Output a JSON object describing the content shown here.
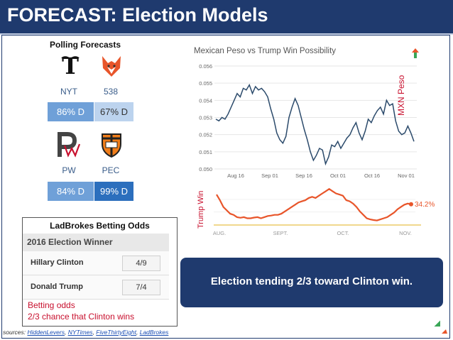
{
  "slide": {
    "title": "FORECAST: Election Models"
  },
  "polling": {
    "title": "Polling Forecasts",
    "items": [
      {
        "name": "NYT",
        "value": "86% D",
        "color": "#6fa0d8",
        "text_color": "#ffffff"
      },
      {
        "name": "538",
        "value": "67% D",
        "color": "#bcd3ee",
        "text_color": "#333333"
      },
      {
        "name": "PW",
        "value": "84% D",
        "color": "#6fa0d8",
        "text_color": "#ffffff"
      },
      {
        "name": "PEC",
        "value": "99% D",
        "color": "#2c6fbd",
        "text_color": "#ffffff"
      }
    ]
  },
  "ladbrokes": {
    "title": "LadBrokes Betting Odds",
    "header": "2016 Election Winner",
    "rows": [
      {
        "name": "Hillary Clinton",
        "odds": "4/9"
      },
      {
        "name": "Donald Trump",
        "odds": "7/4"
      }
    ],
    "note_line1": "Betting odds",
    "note_line2": "2/3 chance that Clinton wins"
  },
  "callout": {
    "text": "Election tending 2/3 toward Clinton win."
  },
  "sources": {
    "prefix": "sources:",
    "links": [
      "HiddenLevers",
      "NYTimes",
      "FiveThirtyEight",
      "LadBrokes"
    ]
  },
  "chart_data": [
    {
      "type": "line",
      "title": "Mexican Peso vs Trump Win Possibility",
      "ylabel": "MXN Peso",
      "ylim": [
        0.05,
        0.056
      ],
      "y_ticks": [
        "0.056",
        "0.055",
        "0.054",
        "0.053",
        "0.052",
        "0.051",
        "0.050"
      ],
      "x_ticks": [
        "Aug 16",
        "Sep 01",
        "Sep 16",
        "Oct 01",
        "Oct 16",
        "Nov 01"
      ],
      "color": "#2b4a6b",
      "series": [
        {
          "values": [
            0.0529,
            0.0528,
            0.053,
            0.0529,
            0.0532,
            0.0536,
            0.054,
            0.0544,
            0.0542,
            0.0547,
            0.0546,
            0.0549,
            0.0544,
            0.0548,
            0.0546,
            0.0547,
            0.0545,
            0.0542,
            0.0535,
            0.0529,
            0.0521,
            0.0517,
            0.0515,
            0.0519,
            0.053,
            0.0536,
            0.0541,
            0.0537,
            0.053,
            0.0523,
            0.0517,
            0.051,
            0.0505,
            0.0508,
            0.0512,
            0.0511,
            0.0503,
            0.0507,
            0.0514,
            0.0513,
            0.0516,
            0.0512,
            0.0515,
            0.0518,
            0.052,
            0.0524,
            0.0527,
            0.0521,
            0.0517,
            0.0522,
            0.0529,
            0.0527,
            0.0531,
            0.0534,
            0.0536,
            0.0532,
            0.054,
            0.0537,
            0.0538,
            0.0528,
            0.0522,
            0.052,
            0.0521,
            0.0525,
            0.0521,
            0.0516
          ]
        }
      ]
    },
    {
      "type": "line",
      "ylabel": "Trump Win",
      "x_ticks": [
        "AUG.",
        "SEPT.",
        "OCT.",
        "NOV."
      ],
      "last_value_label": "34.2%",
      "color": "#e8552a",
      "series": [
        {
          "values": [
            38.5,
            36,
            33,
            31.5,
            30,
            29.5,
            28.5,
            28.2,
            28.5,
            28,
            28,
            28.3,
            28.5,
            28,
            28.5,
            29,
            29.2,
            29.5,
            29.5,
            30,
            31,
            32,
            33,
            34,
            35,
            35.5,
            36,
            37,
            37.5,
            37,
            38,
            39,
            40,
            41,
            40,
            39,
            38.5,
            38,
            36,
            35.5,
            34.5,
            33,
            31,
            29.5,
            28,
            27.5,
            27.2,
            27,
            27.5,
            28,
            28.5,
            29.5,
            30.5,
            32,
            33,
            34,
            34.5,
            34.2
          ]
        }
      ]
    }
  ]
}
